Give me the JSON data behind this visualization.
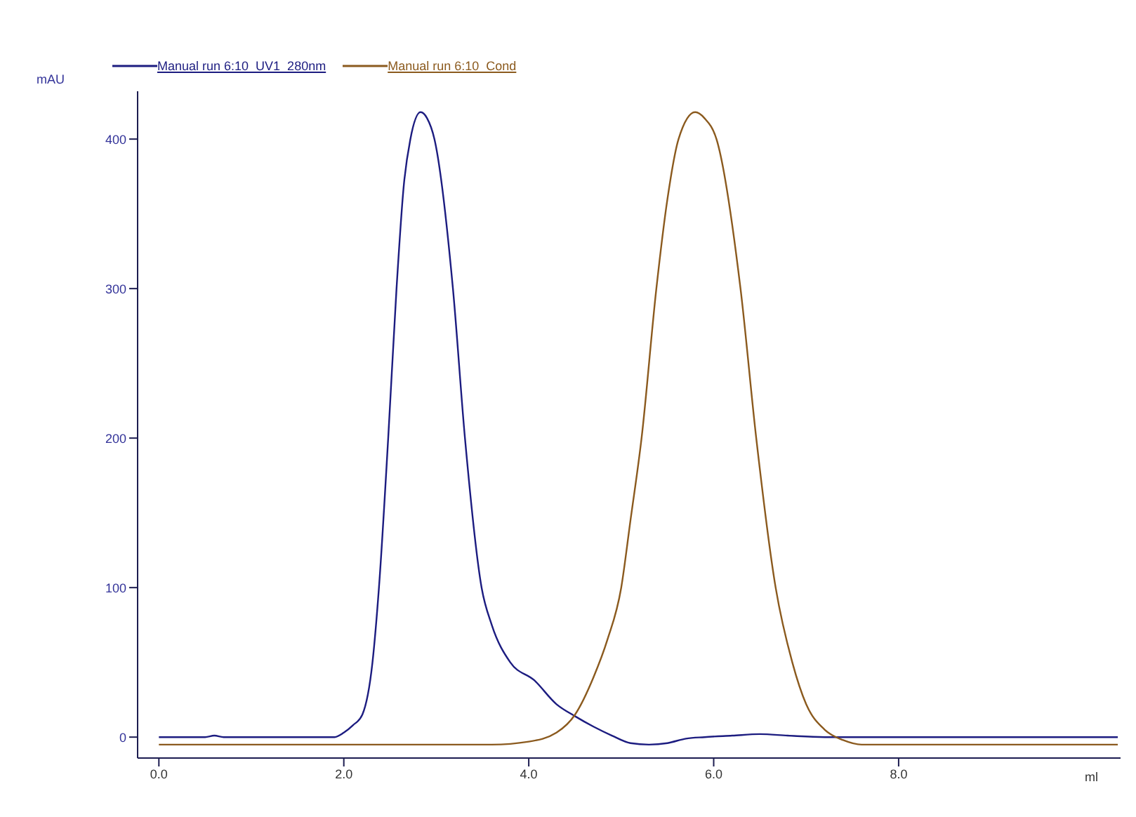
{
  "chart_data": {
    "type": "line",
    "xlabel": "ml",
    "ylabel": "mAU",
    "xlim": [
      -0.23,
      10.4
    ],
    "ylim": [
      -14,
      432
    ],
    "xticks": [
      {
        "value": 0,
        "label": "0.0"
      },
      {
        "value": 2,
        "label": "2.0"
      },
      {
        "value": 4,
        "label": "4.0"
      },
      {
        "value": 6,
        "label": "6.0"
      },
      {
        "value": 8,
        "label": "8.0"
      }
    ],
    "yticks": [
      0,
      100,
      200,
      300,
      400
    ],
    "grid": false,
    "legend": "top left",
    "marker": "none",
    "line_style": "solid",
    "series": [
      {
        "name": "Manual run 6:10_UV1_280nm",
        "color": "#1c1c80",
        "x": [
          0,
          0.5,
          0.6,
          0.7,
          1.0,
          1.9,
          2.0,
          2.1,
          2.2,
          2.31,
          2.38,
          2.48,
          2.57,
          2.65,
          2.72,
          2.83,
          2.9,
          2.98,
          3.18,
          3.31,
          3.49,
          3.6,
          3.8,
          4.06,
          4.3,
          4.5,
          4.7,
          4.9,
          5.1,
          5.3,
          5.5,
          5.7,
          5.9,
          6.2,
          6.5,
          6.8,
          7.2,
          10.37
        ],
        "values": [
          0,
          0,
          1,
          0,
          0,
          0,
          3,
          8,
          15,
          50,
          100,
          200,
          300,
          370,
          400,
          418,
          414,
          400,
          300,
          200,
          100,
          75,
          50,
          38,
          22,
          14,
          7,
          1,
          -4,
          -5,
          -4,
          -1,
          0,
          1,
          2,
          1,
          0,
          0
        ]
      },
      {
        "name": "Manual run 6:10_Cond",
        "color": "#8b5a1e",
        "x": [
          0,
          3.6,
          4.0,
          4.3,
          4.5,
          4.7,
          4.85,
          5.0,
          5.1,
          5.22,
          5.38,
          5.5,
          5.62,
          5.8,
          5.9,
          6.03,
          6.29,
          6.46,
          6.67,
          6.85,
          7.0,
          7.2,
          7.4,
          7.6,
          10.37
        ],
        "values": [
          -5,
          -5,
          -3,
          3,
          15,
          40,
          65,
          100,
          145,
          200,
          300,
          360,
          400,
          418,
          414,
          400,
          300,
          200,
          100,
          50,
          22,
          5,
          -2,
          -5,
          -5
        ]
      }
    ]
  }
}
